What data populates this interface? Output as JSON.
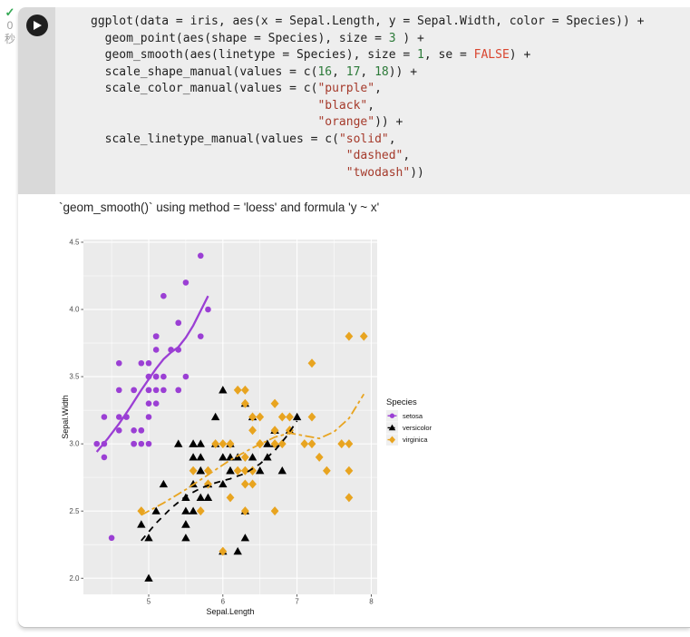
{
  "palette": {
    "num": "#2C7A39",
    "str": "#A53A2B",
    "const": "#D9452F",
    "check_green": "#34A853"
  },
  "cell": {
    "status": {
      "check_icon": "✓",
      "time": "0",
      "unit": "秒"
    }
  },
  "code": {
    "lines": [
      [
        {
          "t": "ggplot(data = iris, aes(x = Sepal.Length, y = Sepal.Width, color = Species)) +",
          "c": "p"
        }
      ],
      [
        {
          "t": "  geom_point(aes(shape = Species), size = ",
          "c": "p"
        },
        {
          "t": "3",
          "c": "n"
        },
        {
          "t": " ) +",
          "c": "p"
        }
      ],
      [
        {
          "t": "  geom_smooth(aes(linetype = Species), size = ",
          "c": "p"
        },
        {
          "t": "1",
          "c": "n"
        },
        {
          "t": ", se = ",
          "c": "p"
        },
        {
          "t": "FALSE",
          "c": "f"
        },
        {
          "t": ") +",
          "c": "p"
        }
      ],
      [
        {
          "t": "  scale_shape_manual(values = c(",
          "c": "p"
        },
        {
          "t": "16",
          "c": "n"
        },
        {
          "t": ", ",
          "c": "p"
        },
        {
          "t": "17",
          "c": "n"
        },
        {
          "t": ", ",
          "c": "p"
        },
        {
          "t": "18",
          "c": "n"
        },
        {
          "t": ")) +",
          "c": "p"
        }
      ],
      [
        {
          "t": "  scale_color_manual(values = c(",
          "c": "p"
        },
        {
          "t": "\"purple\"",
          "c": "s"
        },
        {
          "t": ",",
          "c": "p"
        }
      ],
      [
        {
          "t": "                                ",
          "c": "p"
        },
        {
          "t": "\"black\"",
          "c": "s"
        },
        {
          "t": ",",
          "c": "p"
        }
      ],
      [
        {
          "t": "                                ",
          "c": "p"
        },
        {
          "t": "\"orange\"",
          "c": "s"
        },
        {
          "t": ")) +",
          "c": "p"
        }
      ],
      [
        {
          "t": "  scale_linetype_manual(values = c(",
          "c": "p"
        },
        {
          "t": "\"solid\"",
          "c": "s"
        },
        {
          "t": ",",
          "c": "p"
        }
      ],
      [
        {
          "t": "                                    ",
          "c": "p"
        },
        {
          "t": "\"dashed\"",
          "c": "s"
        },
        {
          "t": ",",
          "c": "p"
        }
      ],
      [
        {
          "t": "                                    ",
          "c": "p"
        },
        {
          "t": "\"twodash\"",
          "c": "s"
        },
        {
          "t": "))",
          "c": "p"
        }
      ]
    ]
  },
  "output": {
    "message": "`geom_smooth()` using method = 'loess' and formula 'y ~ x'"
  },
  "chart_data": {
    "type": "scatter",
    "xlabel": "Sepal.Length",
    "ylabel": "Sepal.Width",
    "xlim": [
      4.12,
      8.08
    ],
    "ylim": [
      1.88,
      4.52
    ],
    "xticks": [
      5,
      6,
      7,
      8
    ],
    "xtick_labels": [
      "5",
      "6",
      "7",
      "8"
    ],
    "yticks": [
      2.0,
      2.5,
      3.0,
      3.5,
      4.0,
      4.5
    ],
    "ytick_labels": [
      "2.0",
      "2.5",
      "3.0",
      "3.5",
      "4.0",
      "4.5"
    ],
    "x_minor": [
      4.5,
      5.5,
      6.5,
      7.5
    ],
    "y_minor": [
      2.25,
      2.75,
      3.25,
      3.75,
      4.25
    ],
    "style": {
      "panel_bg": "#EBEBEB",
      "grid": "#FFFFFF",
      "key_bg": "#EFEFEF"
    },
    "legend": {
      "title": "Species",
      "position": "right",
      "entries": [
        {
          "label": "setosa",
          "series": 0
        },
        {
          "label": "versicolor",
          "series": 1
        },
        {
          "label": "virginica",
          "series": 2
        }
      ]
    },
    "series": [
      {
        "name": "setosa",
        "color": "#9B3FD4",
        "shape": "circle",
        "linetype": "solid",
        "points": [
          [
            5.1,
            3.5
          ],
          [
            4.9,
            3.0
          ],
          [
            4.7,
            3.2
          ],
          [
            4.6,
            3.1
          ],
          [
            5.0,
            3.6
          ],
          [
            5.4,
            3.9
          ],
          [
            4.6,
            3.4
          ],
          [
            5.0,
            3.4
          ],
          [
            4.4,
            2.9
          ],
          [
            4.9,
            3.1
          ],
          [
            5.4,
            3.7
          ],
          [
            4.8,
            3.4
          ],
          [
            4.8,
            3.0
          ],
          [
            4.3,
            3.0
          ],
          [
            5.8,
            4.0
          ],
          [
            5.7,
            4.4
          ],
          [
            5.4,
            3.9
          ],
          [
            5.1,
            3.5
          ],
          [
            5.7,
            3.8
          ],
          [
            5.1,
            3.8
          ],
          [
            5.4,
            3.4
          ],
          [
            5.1,
            3.7
          ],
          [
            4.6,
            3.6
          ],
          [
            5.1,
            3.3
          ],
          [
            4.8,
            3.4
          ],
          [
            5.0,
            3.0
          ],
          [
            5.0,
            3.4
          ],
          [
            5.2,
            3.5
          ],
          [
            5.2,
            3.4
          ],
          [
            4.7,
            3.2
          ],
          [
            4.8,
            3.1
          ],
          [
            5.4,
            3.4
          ],
          [
            5.2,
            4.1
          ],
          [
            5.5,
            4.2
          ],
          [
            4.9,
            3.1
          ],
          [
            5.0,
            3.2
          ],
          [
            5.5,
            3.5
          ],
          [
            4.9,
            3.6
          ],
          [
            4.4,
            3.0
          ],
          [
            5.1,
            3.4
          ],
          [
            5.0,
            3.5
          ],
          [
            4.5,
            2.3
          ],
          [
            4.4,
            3.2
          ],
          [
            5.0,
            3.5
          ],
          [
            5.1,
            3.8
          ],
          [
            4.8,
            3.0
          ],
          [
            5.1,
            3.8
          ],
          [
            4.6,
            3.2
          ],
          [
            5.3,
            3.7
          ],
          [
            5.0,
            3.3
          ]
        ]
      },
      {
        "name": "versicolor",
        "color": "#000000",
        "shape": "triangle",
        "linetype": "dashed",
        "points": [
          [
            7.0,
            3.2
          ],
          [
            6.4,
            3.2
          ],
          [
            6.9,
            3.1
          ],
          [
            5.5,
            2.3
          ],
          [
            6.5,
            2.8
          ],
          [
            5.7,
            2.8
          ],
          [
            6.3,
            3.3
          ],
          [
            4.9,
            2.4
          ],
          [
            6.6,
            2.9
          ],
          [
            5.2,
            2.7
          ],
          [
            5.0,
            2.0
          ],
          [
            5.9,
            3.0
          ],
          [
            6.0,
            2.2
          ],
          [
            6.1,
            2.9
          ],
          [
            5.6,
            2.9
          ],
          [
            6.7,
            3.1
          ],
          [
            5.6,
            3.0
          ],
          [
            5.8,
            2.7
          ],
          [
            6.2,
            2.2
          ],
          [
            5.6,
            2.5
          ],
          [
            5.9,
            3.2
          ],
          [
            6.1,
            2.8
          ],
          [
            6.3,
            2.5
          ],
          [
            6.1,
            2.8
          ],
          [
            6.4,
            2.9
          ],
          [
            6.6,
            3.0
          ],
          [
            6.8,
            2.8
          ],
          [
            6.7,
            3.0
          ],
          [
            6.0,
            2.9
          ],
          [
            5.7,
            2.6
          ],
          [
            5.5,
            2.4
          ],
          [
            5.5,
            2.4
          ],
          [
            5.8,
            2.7
          ],
          [
            6.0,
            2.7
          ],
          [
            5.4,
            3.0
          ],
          [
            6.0,
            3.4
          ],
          [
            6.7,
            3.1
          ],
          [
            6.3,
            2.3
          ],
          [
            5.6,
            3.0
          ],
          [
            5.5,
            2.5
          ],
          [
            5.5,
            2.6
          ],
          [
            6.1,
            3.0
          ],
          [
            5.8,
            2.6
          ],
          [
            5.0,
            2.3
          ],
          [
            5.6,
            2.7
          ],
          [
            5.7,
            3.0
          ],
          [
            5.7,
            2.9
          ],
          [
            6.2,
            2.9
          ],
          [
            5.1,
            2.5
          ],
          [
            5.7,
            2.8
          ]
        ]
      },
      {
        "name": "virginica",
        "color": "#E8A420",
        "shape": "diamond",
        "linetype": "twodash",
        "points": [
          [
            6.3,
            3.3
          ],
          [
            5.8,
            2.7
          ],
          [
            7.1,
            3.0
          ],
          [
            6.3,
            2.9
          ],
          [
            6.5,
            3.0
          ],
          [
            7.6,
            3.0
          ],
          [
            4.9,
            2.5
          ],
          [
            7.3,
            2.9
          ],
          [
            6.7,
            2.5
          ],
          [
            7.2,
            3.6
          ],
          [
            6.5,
            3.2
          ],
          [
            6.4,
            2.7
          ],
          [
            6.8,
            3.0
          ],
          [
            5.7,
            2.5
          ],
          [
            5.8,
            2.8
          ],
          [
            6.4,
            3.2
          ],
          [
            6.5,
            3.0
          ],
          [
            7.7,
            3.8
          ],
          [
            7.7,
            2.6
          ],
          [
            6.0,
            2.2
          ],
          [
            6.9,
            3.2
          ],
          [
            5.6,
            2.8
          ],
          [
            7.7,
            2.8
          ],
          [
            6.3,
            2.7
          ],
          [
            6.7,
            3.3
          ],
          [
            7.2,
            3.2
          ],
          [
            6.2,
            2.8
          ],
          [
            6.1,
            3.0
          ],
          [
            6.4,
            2.8
          ],
          [
            7.2,
            3.0
          ],
          [
            7.4,
            2.8
          ],
          [
            7.9,
            3.8
          ],
          [
            6.4,
            2.8
          ],
          [
            6.3,
            2.8
          ],
          [
            6.1,
            2.6
          ],
          [
            7.7,
            3.0
          ],
          [
            6.3,
            3.4
          ],
          [
            6.4,
            3.1
          ],
          [
            6.0,
            3.0
          ],
          [
            6.9,
            3.1
          ],
          [
            6.7,
            3.1
          ],
          [
            6.9,
            3.1
          ],
          [
            5.8,
            2.7
          ],
          [
            6.8,
            3.2
          ],
          [
            6.7,
            3.3
          ],
          [
            6.7,
            3.0
          ],
          [
            6.3,
            2.5
          ],
          [
            6.5,
            3.0
          ],
          [
            6.2,
            3.4
          ],
          [
            5.9,
            3.0
          ]
        ]
      }
    ],
    "smooth": [
      {
        "name": "setosa",
        "points": [
          [
            4.3,
            2.94
          ],
          [
            4.45,
            3.04
          ],
          [
            4.6,
            3.15
          ],
          [
            4.75,
            3.27
          ],
          [
            4.9,
            3.4
          ],
          [
            5.0,
            3.48
          ],
          [
            5.1,
            3.56
          ],
          [
            5.2,
            3.63
          ],
          [
            5.3,
            3.68
          ],
          [
            5.4,
            3.72
          ],
          [
            5.5,
            3.79
          ],
          [
            5.6,
            3.88
          ],
          [
            5.7,
            3.99
          ],
          [
            5.8,
            4.1
          ]
        ]
      },
      {
        "name": "versicolor",
        "points": [
          [
            4.9,
            2.28
          ],
          [
            5.1,
            2.41
          ],
          [
            5.3,
            2.52
          ],
          [
            5.5,
            2.61
          ],
          [
            5.7,
            2.67
          ],
          [
            5.9,
            2.71
          ],
          [
            6.1,
            2.74
          ],
          [
            6.3,
            2.78
          ],
          [
            6.5,
            2.85
          ],
          [
            6.7,
            2.95
          ],
          [
            6.85,
            3.05
          ],
          [
            7.0,
            3.17
          ]
        ]
      },
      {
        "name": "virginica",
        "points": [
          [
            4.9,
            2.47
          ],
          [
            5.2,
            2.56
          ],
          [
            5.5,
            2.66
          ],
          [
            5.8,
            2.77
          ],
          [
            6.1,
            2.88
          ],
          [
            6.4,
            2.97
          ],
          [
            6.7,
            3.05
          ],
          [
            6.9,
            3.08
          ],
          [
            7.1,
            3.06
          ],
          [
            7.3,
            3.04
          ],
          [
            7.5,
            3.09
          ],
          [
            7.7,
            3.19
          ],
          [
            7.9,
            3.37
          ]
        ]
      }
    ]
  }
}
